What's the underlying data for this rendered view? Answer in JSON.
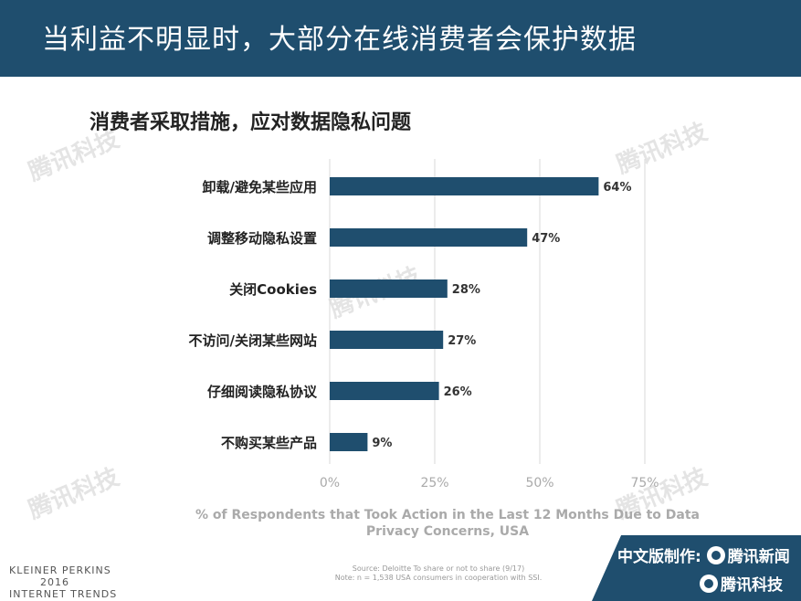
{
  "header": {
    "title": "当利益不明显时，大部分在线消费者会保护数据"
  },
  "chart_title": "消费者采取措施，应对数据隐私问题",
  "watermark": "腾讯科技",
  "chart_data": {
    "type": "bar",
    "orientation": "horizontal",
    "categories": [
      "卸载/避免某些应用",
      "调整移动隐私设置",
      "关闭Cookies",
      "不访问/关闭某些网站",
      "仔细阅读隐私协议",
      "不购买某些产品"
    ],
    "values": [
      64,
      47,
      28,
      27,
      26,
      9
    ],
    "value_labels": [
      "64%",
      "47%",
      "28%",
      "27%",
      "26%",
      "9%"
    ],
    "x_ticks": [
      0,
      25,
      50,
      75
    ],
    "x_tick_labels": [
      "0%",
      "25%",
      "50%",
      "75%"
    ],
    "xlim": [
      0,
      75
    ],
    "xlabel_lines": [
      "% of Respondents that Took Action in the Last 12 Months Due to Data",
      "Privacy Concerns, USA"
    ],
    "bar_color": "#1f4e6e",
    "grid": true
  },
  "footer": {
    "logo_lines": [
      "KLEINER PERKINS",
      "2016",
      "INTERNET TRENDS"
    ],
    "source_line1": "Source: Deloitte To share or not to share (9/17)",
    "source_line2": "Note: n = 1,538 USA consumers in cooperation with SSI.",
    "badge_line1_prefix": "中文版制作:",
    "badge_line1_brand": "腾讯新闻",
    "badge_line2_brand": "腾讯科技"
  },
  "colors": {
    "header_bg": "#1f4e6e",
    "bar": "#1f4e6e",
    "grid": "#d9d9d9",
    "axis_text": "#aaaaaa"
  }
}
